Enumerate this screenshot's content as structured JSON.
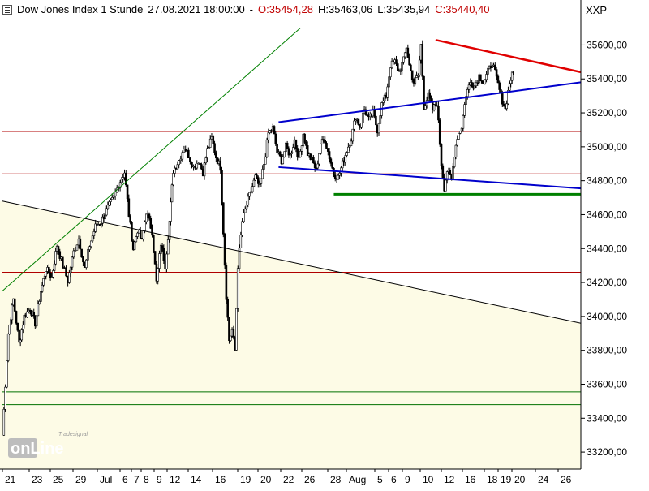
{
  "header": {
    "instrument": "Dow Jones Index 1 Stunde",
    "datetime": "27.08.2021 18:00:00",
    "open": "O:35454,28",
    "high": "H:35463,06",
    "low": "L:35435,94",
    "close": "C:35440,40",
    "symbol": "XXP"
  },
  "watermark": {
    "top": "Tradesignal",
    "main": "onLine"
  },
  "colors": {
    "background": "#ffffff",
    "shaded_region": "#fdfbe6",
    "candle": "#000000",
    "red_line": "#e00000",
    "blue_line": "#0000cc",
    "green_line": "#008000",
    "thin_red": "#b00000",
    "thin_green": "#007000",
    "black_line": "#000000"
  },
  "chart_data": {
    "type": "candlestick",
    "title": "Dow Jones Index 1 Stunde",
    "ylim": [
      33100,
      35760
    ],
    "y_ticks": [
      33200,
      33400,
      33600,
      33800,
      34000,
      34200,
      34400,
      34600,
      34800,
      35000,
      35200,
      35400,
      35600
    ],
    "y_tick_labels": [
      "33200,00",
      "33400,00",
      "33600,00",
      "33800,00",
      "34000,00",
      "34200,00",
      "34400,00",
      "34600,00",
      "34800,00",
      "35000,00",
      "35200,00",
      "35400,00",
      "35600,00"
    ],
    "x_tick_labels": [
      "21",
      "23",
      "25",
      "29",
      "Jul",
      "6",
      "7",
      "8",
      "9",
      "12",
      "14",
      "16",
      "19",
      "20",
      "22",
      "26",
      "28",
      "Aug",
      "5",
      "6",
      "9",
      "10",
      "12",
      "16",
      "18",
      "19",
      "20",
      "24",
      "26"
    ],
    "close_path": [
      [
        0,
        33300
      ],
      [
        0.8,
        33900
      ],
      [
        1.5,
        34100
      ],
      [
        2.3,
        33840
      ],
      [
        3.0,
        34000
      ],
      [
        3.8,
        34050
      ],
      [
        4.5,
        33960
      ],
      [
        5.3,
        34150
      ],
      [
        6.0,
        34280
      ],
      [
        6.8,
        34230
      ],
      [
        7.5,
        34420
      ],
      [
        8.3,
        34300
      ],
      [
        9.0,
        34210
      ],
      [
        9.8,
        34380
      ],
      [
        10.5,
        34460
      ],
      [
        11.3,
        34280
      ],
      [
        12.0,
        34420
      ],
      [
        12.8,
        34530
      ],
      [
        13.6,
        34560
      ],
      [
        14.5,
        34640
      ],
      [
        15.3,
        34700
      ],
      [
        16.0,
        34780
      ],
      [
        16.8,
        34850
      ],
      [
        17.4,
        34600
      ],
      [
        18.0,
        34400
      ],
      [
        18.6,
        34510
      ],
      [
        19.2,
        34440
      ],
      [
        19.8,
        34620
      ],
      [
        20.6,
        34500
      ],
      [
        21.2,
        34200
      ],
      [
        21.8,
        34430
      ],
      [
        22.4,
        34300
      ],
      [
        23.0,
        34560
      ],
      [
        23.5,
        34860
      ],
      [
        24.3,
        34920
      ],
      [
        25.0,
        35000
      ],
      [
        25.6,
        34950
      ],
      [
        26.3,
        34880
      ],
      [
        27.0,
        34920
      ],
      [
        27.6,
        34850
      ],
      [
        28.2,
        34980
      ],
      [
        28.8,
        35050
      ],
      [
        29.4,
        34940
      ],
      [
        30.0,
        34880
      ],
      [
        30.4,
        34500
      ],
      [
        30.8,
        34120
      ],
      [
        31.2,
        33860
      ],
      [
        31.6,
        33920
      ],
      [
        32.0,
        33800
      ],
      [
        32.4,
        34300
      ],
      [
        33.0,
        34560
      ],
      [
        33.6,
        34660
      ],
      [
        34.2,
        34740
      ],
      [
        34.8,
        34820
      ],
      [
        35.4,
        34760
      ],
      [
        36.0,
        34900
      ],
      [
        36.6,
        35080
      ],
      [
        37.2,
        35110
      ],
      [
        37.8,
        34970
      ],
      [
        38.4,
        34920
      ],
      [
        39.0,
        35000
      ],
      [
        39.6,
        34950
      ],
      [
        40.2,
        35040
      ],
      [
        40.8,
        34920
      ],
      [
        41.4,
        35080
      ],
      [
        42.0,
        34960
      ],
      [
        42.6,
        34920
      ],
      [
        43.2,
        34860
      ],
      [
        43.8,
        35020
      ],
      [
        44.4,
        35040
      ],
      [
        45.0,
        34940
      ],
      [
        45.6,
        34840
      ],
      [
        46.2,
        34820
      ],
      [
        46.8,
        34900
      ],
      [
        47.4,
        34980
      ],
      [
        48.0,
        35050
      ],
      [
        48.6,
        35180
      ],
      [
        49.2,
        35120
      ],
      [
        49.8,
        35220
      ],
      [
        50.4,
        35160
      ],
      [
        51.0,
        35200
      ],
      [
        51.6,
        35100
      ],
      [
        52.2,
        35250
      ],
      [
        52.8,
        35300
      ],
      [
        53.4,
        35480
      ],
      [
        54.0,
        35500
      ],
      [
        54.6,
        35440
      ],
      [
        55.2,
        35510
      ],
      [
        55.6,
        35590
      ],
      [
        56.0,
        35480
      ],
      [
        56.6,
        35380
      ],
      [
        57.2,
        35420
      ],
      [
        57.6,
        35600
      ],
      [
        58.0,
        35240
      ],
      [
        58.6,
        35300
      ],
      [
        59.2,
        35220
      ],
      [
        59.8,
        35260
      ],
      [
        60.4,
        34900
      ],
      [
        60.8,
        34760
      ],
      [
        61.2,
        34860
      ],
      [
        61.8,
        34800
      ],
      [
        62.2,
        34960
      ],
      [
        62.6,
        35060
      ],
      [
        63.2,
        35120
      ],
      [
        63.8,
        35310
      ],
      [
        64.4,
        35380
      ],
      [
        65.0,
        35360
      ],
      [
        65.6,
        35420
      ],
      [
        66.2,
        35380
      ],
      [
        66.8,
        35440
      ],
      [
        67.4,
        35500
      ],
      [
        68.0,
        35400
      ],
      [
        68.6,
        35300
      ],
      [
        69.2,
        35220
      ],
      [
        69.8,
        35380
      ],
      [
        70.3,
        35440
      ]
    ],
    "lines": [
      {
        "name": "green-uptrend",
        "color": "#008000",
        "width": 1,
        "from": [
          0,
          34150
        ],
        "to": [
          41,
          35700
        ]
      },
      {
        "name": "black-downtrend",
        "color": "#000000",
        "width": 1,
        "from": [
          0,
          34680
        ],
        "to": [
          79.6,
          33960
        ]
      },
      {
        "name": "red-upper",
        "color": "#e00000",
        "width": 2.5,
        "from": [
          59.6,
          35630
        ],
        "to": [
          79.6,
          35440
        ]
      },
      {
        "name": "blue-upper",
        "color": "#0000cc",
        "width": 2,
        "from": [
          38.0,
          35145
        ],
        "to": [
          79.6,
          35380
        ]
      },
      {
        "name": "blue-lower",
        "color": "#0000cc",
        "width": 2,
        "from": [
          38.0,
          34880
        ],
        "to": [
          79.6,
          34755
        ]
      },
      {
        "name": "green-support",
        "color": "#008000",
        "width": 3,
        "from": [
          45.6,
          34720
        ],
        "to": [
          79.6,
          34720
        ]
      },
      {
        "name": "red-h-35090",
        "color": "#b00000",
        "width": 1,
        "from": [
          0,
          35090
        ],
        "to": [
          79.6,
          35090
        ]
      },
      {
        "name": "red-h-34840",
        "color": "#b00000",
        "width": 1,
        "from": [
          0,
          34840
        ],
        "to": [
          79.6,
          34840
        ]
      },
      {
        "name": "red-h-34260",
        "color": "#b00000",
        "width": 1,
        "from": [
          0,
          34260
        ],
        "to": [
          79.6,
          34260
        ]
      },
      {
        "name": "green-h-33555",
        "color": "#007000",
        "width": 1,
        "from": [
          0,
          33555
        ],
        "to": [
          79.6,
          33555
        ]
      },
      {
        "name": "green-h-33480",
        "color": "#007000",
        "width": 1,
        "from": [
          0,
          33480
        ],
        "to": [
          79.6,
          33480
        ]
      }
    ],
    "shaded_region": {
      "from_level_left": 34680,
      "to_level_right": 33960,
      "bottom": 33100
    }
  }
}
